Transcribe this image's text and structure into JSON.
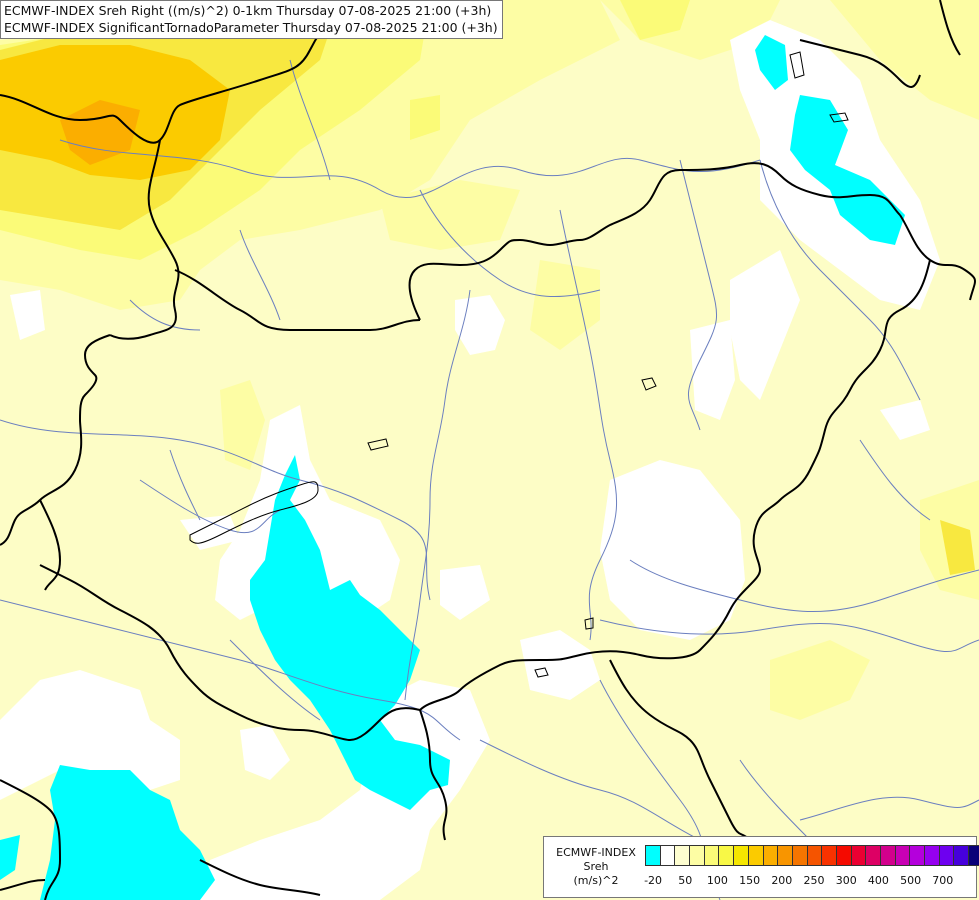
{
  "header": {
    "line1": "ECMWF-INDEX Sreh Right ((m/s)^2) 0-1km Thursday 07-08-2025 21:00 (+3h)",
    "line2": "ECMWF-INDEX SignificantTornadoParameter Thursday 07-08-2025 21:00 (+3h)"
  },
  "legend": {
    "title_lines": [
      "ECMWF-INDEX",
      "Sreh",
      "(m/s)^2"
    ],
    "colors": [
      "#00ffff",
      "#ffffff",
      "#fefed0",
      "#fdfda4",
      "#fbfb78",
      "#f8f846",
      "#f5e600",
      "#fbcb00",
      "#fbae00",
      "#f89500",
      "#f57500",
      "#f55400",
      "#f83200",
      "#f50a00",
      "#eb0032",
      "#dd0064",
      "#d2008c",
      "#c800b4",
      "#b400dc",
      "#9600f0",
      "#6e00f0",
      "#4600dc",
      "#0a0078"
    ],
    "ticks": [
      {
        "label": "-20",
        "index": 0.5
      },
      {
        "label": "50",
        "index": 2.5
      },
      {
        "label": "100",
        "index": 4.5
      },
      {
        "label": "150",
        "index": 6.5
      },
      {
        "label": "200",
        "index": 8.5
      },
      {
        "label": "250",
        "index": 10.5
      },
      {
        "label": "300",
        "index": 12.5
      },
      {
        "label": "400",
        "index": 14.5
      },
      {
        "label": "500",
        "index": 16.5
      },
      {
        "label": "700",
        "index": 18.5
      }
    ]
  },
  "map": {
    "colors": {
      "background": "#fdfdc6",
      "pale_yellow": "#fdfda4",
      "yellow": "#fbfb78",
      "gold": "#f8e840",
      "orange": "#fbcb00",
      "dark_orange": "#fbae00",
      "white": "#ffffff",
      "cyan": "#00ffff",
      "border": "#000000",
      "river": "#6b7fbf"
    }
  }
}
